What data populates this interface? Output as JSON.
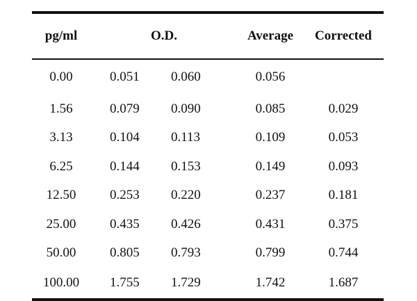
{
  "table": {
    "headers": {
      "concentration": "pg/ml",
      "od": "O.D.",
      "average": "Average",
      "corrected": "Corrected"
    },
    "rows": [
      {
        "concentration": "0.00",
        "od1": "0.051",
        "od2": "0.060",
        "average": "0.056",
        "corrected": ""
      },
      {
        "concentration": "1.56",
        "od1": "0.079",
        "od2": "0.090",
        "average": "0.085",
        "corrected": "0.029"
      },
      {
        "concentration": "3.13",
        "od1": "0.104",
        "od2": "0.113",
        "average": "0.109",
        "corrected": "0.053"
      },
      {
        "concentration": "6.25",
        "od1": "0.144",
        "od2": "0.153",
        "average": "0.149",
        "corrected": "0.093"
      },
      {
        "concentration": "12.50",
        "od1": "0.253",
        "od2": "0.220",
        "average": "0.237",
        "corrected": "0.181"
      },
      {
        "concentration": "25.00",
        "od1": "0.435",
        "od2": "0.426",
        "average": "0.431",
        "corrected": "0.375"
      },
      {
        "concentration": "50.00",
        "od1": "0.805",
        "od2": "0.793",
        "average": "0.799",
        "corrected": "0.744"
      },
      {
        "concentration": "100.00",
        "od1": "1.755",
        "od2": "1.729",
        "average": "1.742",
        "corrected": "1.687"
      }
    ]
  }
}
